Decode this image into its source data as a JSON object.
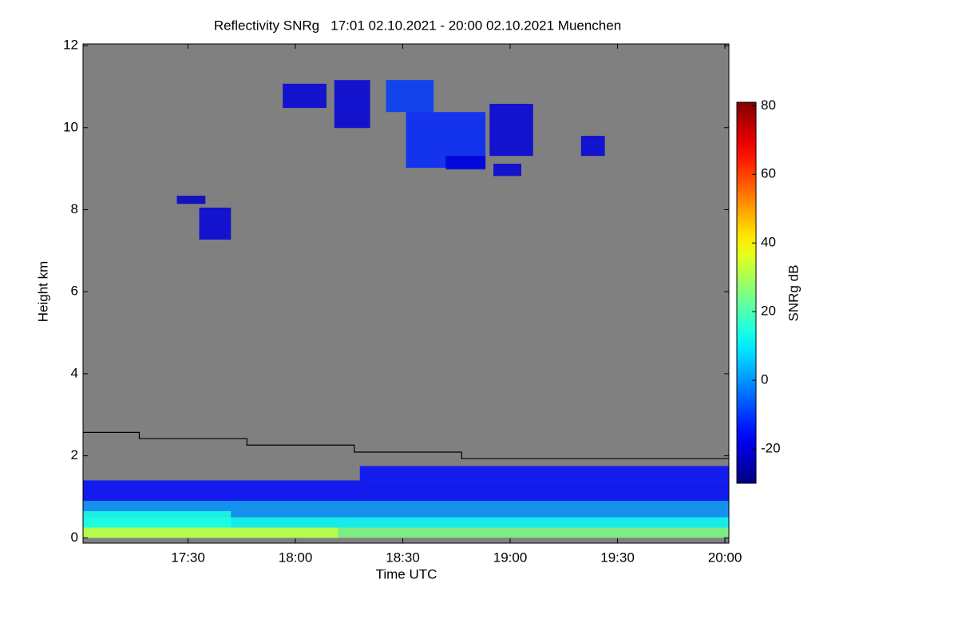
{
  "chart_data": {
    "type": "heatmap",
    "title": "Reflectivity SNRg   17:01 02.10.2021 - 20:00 02.10.2021 Muenchen",
    "xlabel": "Time UTC",
    "ylabel": "Height km",
    "colorbar_label": "SNRg dB",
    "background": "#808080",
    "xlim": [
      17.0111,
      20.0185
    ],
    "xticks": [
      {
        "value": 17.5,
        "label": "17:30"
      },
      {
        "value": 18.0,
        "label": "18:00"
      },
      {
        "value": 18.5,
        "label": "18:30"
      },
      {
        "value": 19.0,
        "label": "19:00"
      },
      {
        "value": 19.5,
        "label": "19:30"
      },
      {
        "value": 20.0,
        "label": "20:00"
      }
    ],
    "ylim": [
      -0.13,
      12.04
    ],
    "yticks": [
      0,
      2,
      4,
      6,
      8,
      10,
      12
    ],
    "clim": [
      -30,
      81
    ],
    "cticks": [
      -20,
      0,
      20,
      40,
      60,
      80
    ],
    "cells": [
      {
        "t": [
          17.0111,
          20.0185
        ],
        "h": [
          0.9,
          1.4
        ],
        "snr": -15
      },
      {
        "t": [
          18.3,
          20.0185
        ],
        "h": [
          1.4,
          1.75
        ],
        "snr": -15
      },
      {
        "t": [
          17.0111,
          20.0185
        ],
        "h": [
          0.5,
          0.9
        ],
        "snr": 0
      },
      {
        "t": [
          17.0111,
          20.0185
        ],
        "h": [
          0.25,
          0.5
        ],
        "snr": 12
      },
      {
        "t": [
          17.0111,
          17.7
        ],
        "h": [
          0.25,
          0.65
        ],
        "snr": 15
      },
      {
        "t": [
          17.0111,
          20.0185
        ],
        "h": [
          0.0,
          0.25
        ],
        "snr": 25
      },
      {
        "t": [
          17.0111,
          18.2
        ],
        "h": [
          0.0,
          0.25
        ],
        "snr": 32
      },
      {
        "t": [
          17.941,
          18.145
        ],
        "h": [
          10.48,
          11.07
        ],
        "snr": -20
      },
      {
        "t": [
          18.181,
          18.348
        ],
        "h": [
          9.99,
          11.16
        ],
        "snr": -20
      },
      {
        "t": [
          18.422,
          18.644
        ],
        "h": [
          10.38,
          11.16
        ],
        "snr": -10
      },
      {
        "t": [
          18.515,
          18.885
        ],
        "h": [
          9.02,
          10.38
        ],
        "snr": -12
      },
      {
        "t": [
          18.7,
          18.885
        ],
        "h": [
          8.98,
          9.31
        ],
        "snr": -20
      },
      {
        "t": [
          18.904,
          19.107
        ],
        "h": [
          9.31,
          10.58
        ],
        "snr": -20
      },
      {
        "t": [
          18.922,
          19.052
        ],
        "h": [
          8.82,
          9.12
        ],
        "snr": -20
      },
      {
        "t": [
          19.33,
          19.441
        ],
        "h": [
          9.31,
          9.8
        ],
        "snr": -20
      },
      {
        "t": [
          17.448,
          17.581
        ],
        "h": [
          8.14,
          8.34
        ],
        "snr": -22
      },
      {
        "t": [
          17.552,
          17.7
        ],
        "h": [
          7.27,
          8.05
        ],
        "snr": -20
      }
    ],
    "series": [
      {
        "color": "#000000",
        "x": [
          17.0111,
          17.273,
          17.273,
          17.774,
          17.774,
          18.274,
          18.274,
          18.774,
          18.774,
          20.0185
        ],
        "values": [
          2.57,
          2.57,
          2.42,
          2.42,
          2.26,
          2.26,
          2.09,
          2.09,
          1.93,
          1.93
        ]
      }
    ]
  }
}
